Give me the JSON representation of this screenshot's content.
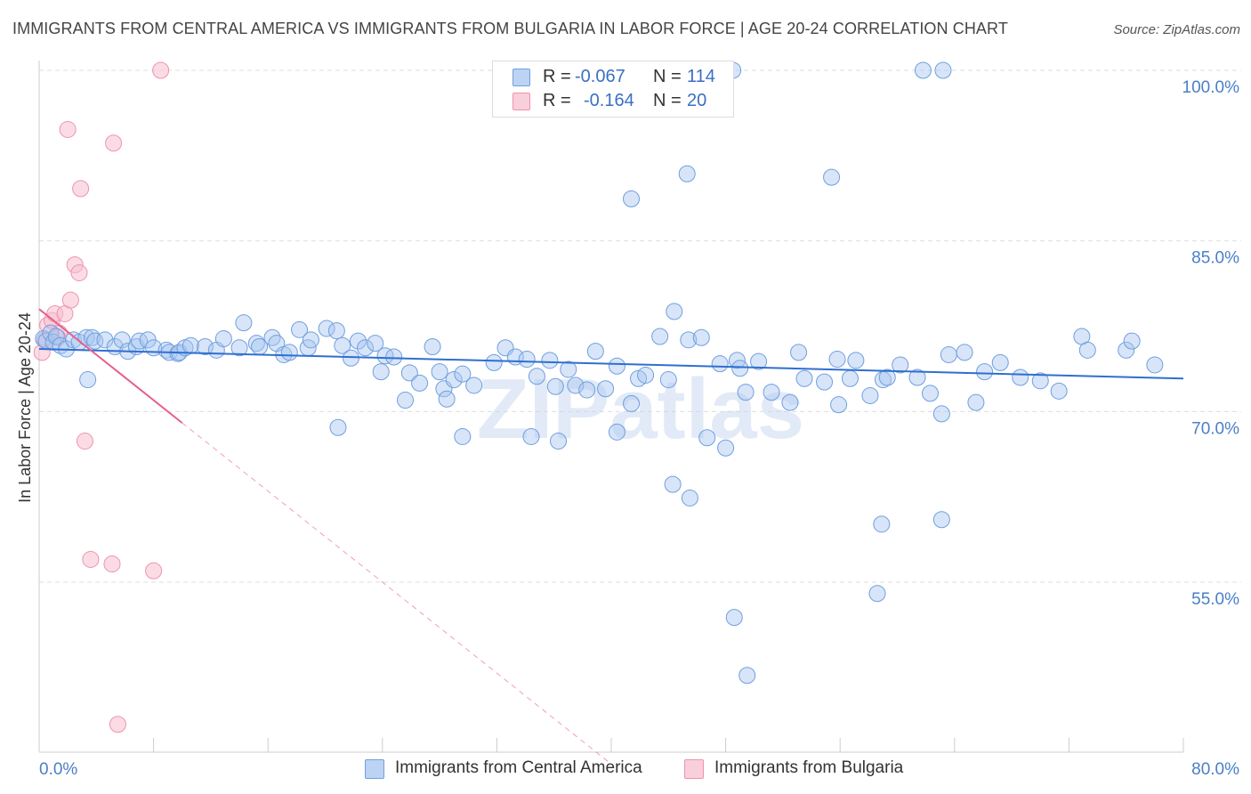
{
  "title": "IMMIGRANTS FROM CENTRAL AMERICA VS IMMIGRANTS FROM BULGARIA IN LABOR FORCE | AGE 20-24 CORRELATION CHART",
  "source": "Source: ZipAtlas.com",
  "watermark": "ZIPatlas",
  "legend": {
    "series1": {
      "r_label": "R =",
      "r_value": "-0.067",
      "n_label": "N =",
      "n_value": "114"
    },
    "series2": {
      "r_label": "R =",
      "r_value": "-0.164",
      "n_label": "N =",
      "n_value": "20"
    }
  },
  "bottom_legend": {
    "series1": "Immigrants from Central America",
    "series2": "Immigrants from Bulgaria"
  },
  "colors": {
    "blue_fill": "#a9c6f0",
    "blue_stroke": "#6f9fe0",
    "blue_line": "#2f6fd0",
    "pink_fill": "#f7bfd0",
    "pink_stroke": "#ee93ae",
    "pink_line": "#e5608c",
    "tick_text": "#4a7fc7"
  },
  "chart_data": {
    "type": "scatter",
    "title": "IMMIGRANTS FROM CENTRAL AMERICA VS IMMIGRANTS FROM BULGARIA IN LABOR FORCE | AGE 20-24 CORRELATION CHART",
    "xlabel": "",
    "ylabel": "In Labor Force | Age 20-24",
    "xlim": [
      0,
      80
    ],
    "ylim": [
      40,
      102
    ],
    "x_tick_labels": [
      "0.0%",
      "80.0%"
    ],
    "y_ticks": [
      55,
      70,
      85,
      100
    ],
    "y_tick_labels": [
      "55.0%",
      "70.0%",
      "85.0%",
      "100.0%"
    ],
    "grid": true,
    "legend_position": "top-center",
    "series": [
      {
        "name": "Immigrants from Central America",
        "color": "#a9c6f0",
        "r": -0.067,
        "n": 114,
        "trend": {
          "x": [
            0,
            80
          ],
          "y": [
            75.5,
            72.9
          ]
        },
        "points": [
          [
            0.3,
            76.4
          ],
          [
            0.5,
            76.2
          ],
          [
            0.8,
            76.9
          ],
          [
            1.0,
            76.1
          ],
          [
            1.2,
            76.6
          ],
          [
            1.5,
            75.8
          ],
          [
            1.9,
            75.5
          ],
          [
            2.4,
            76.3
          ],
          [
            2.8,
            76.1
          ],
          [
            3.3,
            76.5
          ],
          [
            3.4,
            72.8
          ],
          [
            3.7,
            76.5
          ],
          [
            3.9,
            76.2
          ],
          [
            4.6,
            76.3
          ],
          [
            5.3,
            75.7
          ],
          [
            5.8,
            76.3
          ],
          [
            6.2,
            75.3
          ],
          [
            6.8,
            75.7
          ],
          [
            7.0,
            76.2
          ],
          [
            7.6,
            76.3
          ],
          [
            8.0,
            75.6
          ],
          [
            8.9,
            75.4
          ],
          [
            9.1,
            75.2
          ],
          [
            9.7,
            75.1
          ],
          [
            9.8,
            75.2
          ],
          [
            10.2,
            75.6
          ],
          [
            10.6,
            75.8
          ],
          [
            11.6,
            75.7
          ],
          [
            12.4,
            75.4
          ],
          [
            12.9,
            76.4
          ],
          [
            14.0,
            75.6
          ],
          [
            14.3,
            77.8
          ],
          [
            15.2,
            76.0
          ],
          [
            15.4,
            75.7
          ],
          [
            16.3,
            76.5
          ],
          [
            16.6,
            76.0
          ],
          [
            17.1,
            75.0
          ],
          [
            17.5,
            75.2
          ],
          [
            18.2,
            77.2
          ],
          [
            18.8,
            75.6
          ],
          [
            19.0,
            76.3
          ],
          [
            20.1,
            77.3
          ],
          [
            20.8,
            77.1
          ],
          [
            21.2,
            75.8
          ],
          [
            21.8,
            74.7
          ],
          [
            22.3,
            76.2
          ],
          [
            22.8,
            75.6
          ],
          [
            23.5,
            76.0
          ],
          [
            23.9,
            73.5
          ],
          [
            24.2,
            74.9
          ],
          [
            24.8,
            74.8
          ],
          [
            25.9,
            73.4
          ],
          [
            26.6,
            72.5
          ],
          [
            27.5,
            75.7
          ],
          [
            28.0,
            73.5
          ],
          [
            28.3,
            72.0
          ],
          [
            28.5,
            71.1
          ],
          [
            29.0,
            72.8
          ],
          [
            29.6,
            73.3
          ],
          [
            30.4,
            72.3
          ],
          [
            31.8,
            74.3
          ],
          [
            32.6,
            75.6
          ],
          [
            33.3,
            74.8
          ],
          [
            34.1,
            74.6
          ],
          [
            34.8,
            73.1
          ],
          [
            35.7,
            74.5
          ],
          [
            36.1,
            72.2
          ],
          [
            37.0,
            73.7
          ],
          [
            37.5,
            72.3
          ],
          [
            38.3,
            71.9
          ],
          [
            38.9,
            75.3
          ],
          [
            39.6,
            72.0
          ],
          [
            40.4,
            74.0
          ],
          [
            41.4,
            70.7
          ],
          [
            41.9,
            72.9
          ],
          [
            42.4,
            73.2
          ],
          [
            43.4,
            76.6
          ],
          [
            44.0,
            72.8
          ],
          [
            45.4,
            76.3
          ],
          [
            46.3,
            76.5
          ],
          [
            47.6,
            74.2
          ],
          [
            48.8,
            74.5
          ],
          [
            49.0,
            73.8
          ],
          [
            49.4,
            71.7
          ],
          [
            50.3,
            74.4
          ],
          [
            51.2,
            71.7
          ],
          [
            52.5,
            70.8
          ],
          [
            53.1,
            75.2
          ],
          [
            53.5,
            72.9
          ],
          [
            54.9,
            72.6
          ],
          [
            55.8,
            74.6
          ],
          [
            55.9,
            70.6
          ],
          [
            56.7,
            72.9
          ],
          [
            57.1,
            74.5
          ],
          [
            58.1,
            71.4
          ],
          [
            59.0,
            72.8
          ],
          [
            59.3,
            73.0
          ],
          [
            60.2,
            74.1
          ],
          [
            61.4,
            73.0
          ],
          [
            62.3,
            71.6
          ],
          [
            63.1,
            69.8
          ],
          [
            63.6,
            75.0
          ],
          [
            64.7,
            75.2
          ],
          [
            65.5,
            70.8
          ],
          [
            66.1,
            73.5
          ],
          [
            67.2,
            74.3
          ],
          [
            68.6,
            73.0
          ],
          [
            70.0,
            72.7
          ],
          [
            71.3,
            71.8
          ],
          [
            72.9,
            76.6
          ],
          [
            73.3,
            75.4
          ],
          [
            76.0,
            75.4
          ],
          [
            76.4,
            76.2
          ],
          [
            78.0,
            74.1
          ]
        ]
      },
      {
        "name": "Immigrants from Bulgaria",
        "color": "#f7bfd0",
        "r": -0.164,
        "n": 20,
        "trend": {
          "x": [
            0,
            10
          ],
          "y": [
            79.0,
            69.0
          ]
        },
        "trend_dashed_extension": {
          "x": [
            10,
            40
          ],
          "y": [
            69.0,
            39.0
          ]
        },
        "points": [
          [
            0.2,
            75.2
          ],
          [
            0.4,
            76.3
          ],
          [
            0.6,
            77.6
          ],
          [
            0.9,
            78.0
          ],
          [
            1.1,
            78.6
          ],
          [
            1.4,
            76.9
          ],
          [
            1.8,
            78.6
          ],
          [
            2.2,
            79.8
          ],
          [
            2.5,
            82.9
          ],
          [
            2.8,
            82.2
          ],
          [
            2.9,
            89.6
          ],
          [
            3.2,
            67.4
          ],
          [
            3.6,
            57.0
          ],
          [
            2.0,
            94.8
          ],
          [
            5.2,
            93.6
          ],
          [
            5.1,
            56.6
          ],
          [
            8.0,
            56.0
          ],
          [
            8.5,
            100.0
          ],
          [
            5.5,
            42.5
          ],
          [
            1.3,
            76.5
          ]
        ]
      }
    ]
  }
}
